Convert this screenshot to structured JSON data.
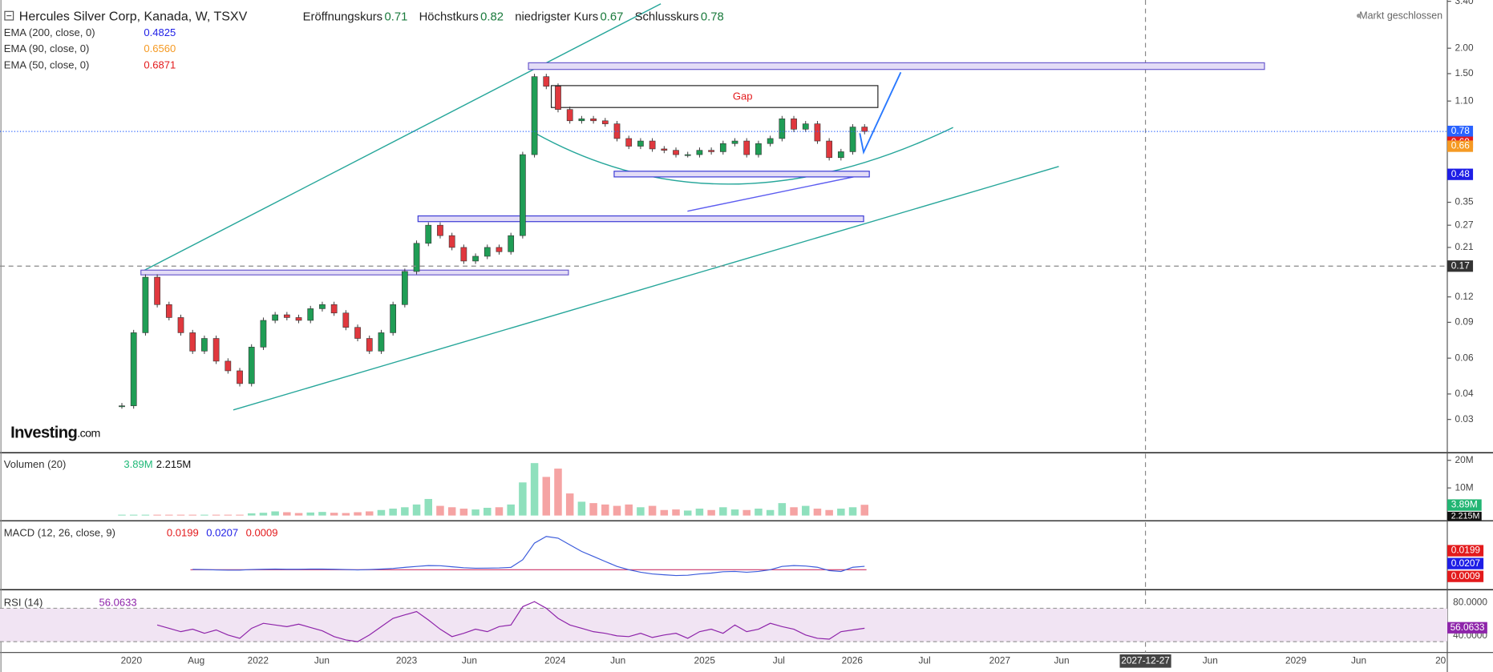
{
  "header": {
    "title": "Hercules Silver Corp, Kanada, W, TSXV",
    "quote": [
      {
        "label": "Eröffnungskurs",
        "value": 0.71
      },
      {
        "label": "Höchstkurs",
        "value": 0.82
      },
      {
        "label": "niedrigster Kurs",
        "value": 0.67
      },
      {
        "label": "Schlusskurs",
        "value": 0.78
      }
    ],
    "market_status": "Markt geschlossen"
  },
  "indicators": [
    {
      "label": "EMA (200, close, 0)",
      "value": "0.4825",
      "color": "#1e1ee6"
    },
    {
      "label": "EMA (90, close, 0)",
      "value": "0.6560",
      "color": "#f59a23"
    },
    {
      "label": "EMA (50, close, 0)",
      "value": "0.6871",
      "color": "#e31a1c"
    }
  ],
  "logo": {
    "brand": "Investing",
    "suffix": ".com"
  },
  "annotation": "Gap",
  "price": {
    "log_scale": true,
    "ylim": [
      0.0208,
      3.45
    ],
    "yticks": [
      {
        "value": 3.4,
        "label": "3.40"
      },
      {
        "value": 2,
        "label": "2.00"
      },
      {
        "value": 1.5,
        "label": "1.50"
      },
      {
        "value": 1.1,
        "label": "1.10"
      },
      0.35,
      0.27,
      0.21,
      0.12,
      0.09,
      0.06,
      0.04,
      0.03
    ],
    "up_color": "#1f9d55",
    "down_color": "#e0383e",
    "closes": [
      0.035,
      0.08,
      0.15,
      0.11,
      0.095,
      0.08,
      0.065,
      0.075,
      0.058,
      0.052,
      0.045,
      0.068,
      0.092,
      0.098,
      0.095,
      0.092,
      0.105,
      0.11,
      0.1,
      0.085,
      0.075,
      0.065,
      0.08,
      0.11,
      0.16,
      0.22,
      0.27,
      0.24,
      0.21,
      0.18,
      0.19,
      0.21,
      0.2,
      0.24,
      0.6,
      1.45,
      1.3,
      1.0,
      0.88,
      0.9,
      0.88,
      0.85,
      0.72,
      0.66,
      0.7,
      0.64,
      0.63,
      0.6,
      0.6,
      0.63,
      0.62,
      0.68,
      0.7,
      0.6,
      0.68,
      0.72,
      0.9,
      0.8,
      0.85,
      0.7,
      0.58,
      0.62,
      0.82,
      0.78
    ],
    "price_tags": [
      {
        "value": 0.78,
        "color": "#2962ff"
      },
      {
        "value": 0.69,
        "color": "#e31a1c"
      },
      {
        "value": 0.66,
        "color": "#f59a23"
      },
      {
        "value": 0.48,
        "color": "#1e1ee6"
      },
      {
        "value": 0.17,
        "color": "#333333"
      }
    ]
  },
  "volume": {
    "label": "Volumen (20)",
    "value": "3.89M",
    "average": "2.215M",
    "ylim": [
      0,
      22400000
    ],
    "yticks": [
      {
        "value": 20000000,
        "label": "20M"
      },
      {
        "value": 10000000,
        "label": "10M"
      }
    ],
    "values": [
      300000,
      300000,
      300000,
      300000,
      300000,
      300000,
      300000,
      300000,
      300000,
      300000,
      300000,
      800000,
      1000000,
      1500000,
      1200000,
      900000,
      1100000,
      1300000,
      1000000,
      900000,
      1200000,
      1500000,
      2000000,
      2500000,
      3000000,
      4000000,
      6000000,
      3500000,
      3000000,
      2500000,
      2200000,
      2800000,
      3000000,
      4000000,
      12000000,
      19000000,
      14000000,
      17000000,
      8000000,
      5000000,
      4500000,
      4000000,
      3500000,
      4000000,
      3000000,
      3500000,
      2000000,
      2200000,
      1800000,
      2500000,
      2000000,
      3000000,
      2200000,
      2000000,
      2500000,
      2000000,
      4500000,
      3000000,
      3500000,
      2500000,
      2000000,
      2500000,
      3000000,
      3890000
    ]
  },
  "macd": {
    "label": "MACD (12, 26, close, 9)",
    "readouts": [
      {
        "value": "0.0199",
        "color": "#e31a1c"
      },
      {
        "value": "0.0207",
        "color": "#1e1ee6"
      },
      {
        "value": "0.0009",
        "color": "#e31a1c"
      }
    ],
    "ylim": [
      -0.12,
      0.28
    ],
    "color": "#3b5bdb",
    "values": [
      null,
      null,
      null,
      null,
      null,
      null,
      0.002,
      0.001,
      -0.001,
      -0.002,
      -0.002,
      0.001,
      0.003,
      0.004,
      0.003,
      0.003,
      0.004,
      0.004,
      0.003,
      0.001,
      -0.001,
      0.001,
      0.004,
      0.008,
      0.014,
      0.02,
      0.025,
      0.024,
      0.018,
      0.012,
      0.009,
      0.01,
      0.011,
      0.014,
      0.06,
      0.16,
      0.2,
      0.19,
      0.15,
      0.11,
      0.08,
      0.05,
      0.02,
      0,
      -0.015,
      -0.025,
      -0.03,
      -0.035,
      -0.033,
      -0.025,
      -0.02,
      -0.012,
      -0.01,
      -0.015,
      -0.01,
      0,
      0.02,
      0.025,
      0.022,
      0.015,
      -0.005,
      -0.01,
      0.015,
      0.0207
    ]
  },
  "rsi": {
    "label": "RSI (14)",
    "value": "56.0633",
    "ylim": [
      27,
      100
    ],
    "yticks": [
      {
        "value": 80,
        "label": "80.0000"
      },
      {
        "value": 40,
        "label": "40.0000"
      }
    ],
    "color": "#8e24aa",
    "values": [
      null,
      null,
      null,
      60,
      56,
      52,
      55,
      50,
      54,
      48,
      44,
      56,
      62,
      60,
      58,
      61,
      57,
      53,
      46,
      42,
      40,
      48,
      58,
      68,
      72,
      76,
      66,
      55,
      46,
      50,
      55,
      52,
      58,
      60,
      82,
      88,
      80,
      68,
      60,
      56,
      52,
      50,
      47,
      46,
      50,
      45,
      48,
      50,
      44,
      52,
      55,
      50,
      60,
      52,
      55,
      62,
      58,
      55,
      48,
      44,
      43,
      52,
      54,
      56.0633
    ]
  },
  "x_axis": {
    "labels": [
      "2020",
      "Aug",
      "2022",
      "Jun",
      "2023",
      "Jun",
      "2024",
      "Jun",
      "2025",
      "Jul",
      "2026",
      "Jul",
      "2027",
      "Jun",
      "Jun",
      "2029",
      "Jun",
      "20"
    ],
    "crosshair": "2027-12-27"
  }
}
